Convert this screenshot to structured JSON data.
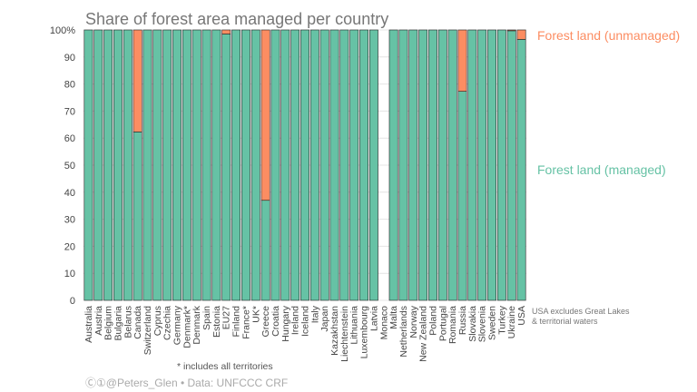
{
  "chart_data": {
    "type": "bar",
    "stacked": true,
    "title": "Share of forest area managed per country",
    "ylim": [
      0,
      100
    ],
    "yticks": [
      "0",
      "10",
      "20",
      "30",
      "40",
      "50",
      "60",
      "70",
      "80",
      "90",
      "100%"
    ],
    "categories": [
      "Australia",
      "Austria",
      "Belgium",
      "Bulgaria",
      "Belarus",
      "Canada",
      "Switzerland",
      "Cyprus",
      "Czechia",
      "Germany",
      "Denmark*",
      "Denmark",
      "Spain",
      "Estonia",
      "EU27",
      "Finland",
      "France*",
      "UK*",
      "Greece",
      "Croatia",
      "Hungary",
      "Ireland",
      "Iceland",
      "Italy",
      "Japan",
      "Kazakhstan",
      "Liechtenstein",
      "Lithuania",
      "Luxembourg",
      "Latvia",
      "Monaco",
      "Malta",
      "Netherlands",
      "Norway",
      "New Zealand",
      "Poland",
      "Portugal",
      "Romania",
      "Russia",
      "Slovakia",
      "Slovenia",
      "Sweden",
      "Turkey",
      "Ukraine",
      "USA"
    ],
    "series": [
      {
        "name": "Forest land (managed)",
        "color": "#66c2a5",
        "values": [
          100,
          100,
          100,
          100,
          100,
          62.3,
          100,
          100,
          100,
          100,
          100,
          100,
          100,
          100,
          98.5,
          100,
          100,
          100,
          37,
          100,
          100,
          100,
          100,
          100,
          100,
          100,
          100,
          100,
          100,
          100,
          null,
          100,
          100,
          100,
          100,
          100,
          100,
          100,
          77.3,
          100,
          100,
          100,
          100,
          99.7,
          96.5
        ]
      },
      {
        "name": "Forest land (unmanaged)",
        "color": "#fc8d62",
        "values": [
          0,
          0,
          0,
          0,
          0,
          37.7,
          0,
          0,
          0,
          0,
          0,
          0,
          0,
          0,
          1.5,
          0,
          0,
          0,
          63,
          0,
          0,
          0,
          0,
          0,
          0,
          0,
          0,
          0,
          0,
          0,
          null,
          0,
          0,
          0,
          0,
          0,
          0,
          0,
          22.7,
          0,
          0,
          0,
          0,
          0.3,
          3.5
        ]
      }
    ],
    "grid": true,
    "legend_position": "right"
  },
  "notes": {
    "usa_note_line1": "USA excludes Great Lakes",
    "usa_note_line2": "& territorial waters",
    "asterisk_note": "* includes all territories",
    "credit": "Ⓒ①@Peters_Glen • Data: UNFCCC CRF"
  }
}
